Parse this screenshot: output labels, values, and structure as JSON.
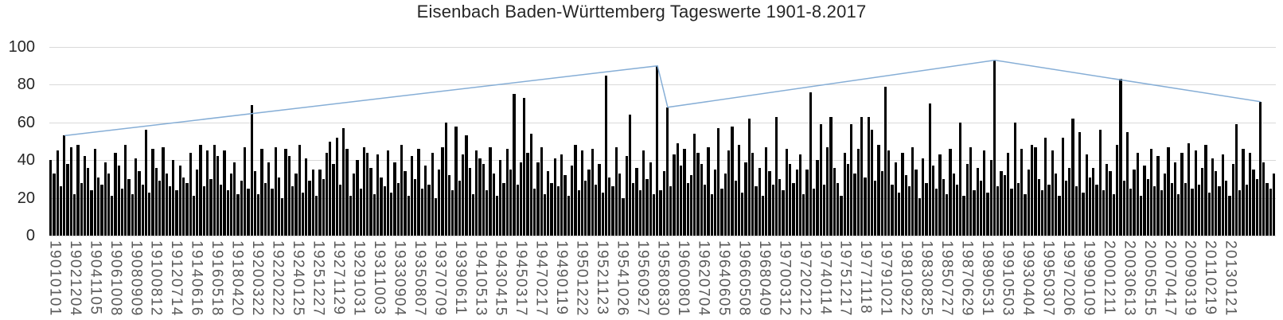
{
  "chart_data": {
    "type": "bar",
    "title": "Eisenbach Baden-Württemberg Tageswerte 1901-8.2017",
    "ylim": [
      0,
      100
    ],
    "yticks": [
      0,
      20,
      40,
      60,
      80,
      100
    ],
    "grid": "horizontal",
    "legend": "none",
    "x_tick_labels": [
      "19010101",
      "19021204",
      "19041105",
      "19061008",
      "19080909",
      "19100812",
      "19120714",
      "19140616",
      "19160518",
      "19180420",
      "19200322",
      "19220222",
      "19240125",
      "19251227",
      "19271129",
      "19291031",
      "19311003",
      "19330904",
      "19350807",
      "19370709",
      "19390611",
      "19410513",
      "19430415",
      "19450317",
      "19470217",
      "19490119",
      "19501222",
      "19521123",
      "19541026",
      "19560927",
      "19580830",
      "19600801",
      "19620704",
      "19640605",
      "19660508",
      "19680409",
      "19700312",
      "19720212",
      "19740114",
      "19751217",
      "19771118",
      "19791021",
      "19810922",
      "19830825",
      "19850727",
      "19870629",
      "19890531",
      "19910503",
      "19930404",
      "19950307",
      "19970206",
      "19990109",
      "20001211",
      "20030613",
      "20050515",
      "20070417",
      "20090319",
      "20110219",
      "20130121"
    ],
    "x_extra_intervals_after_last_label": 2.5,
    "series": [
      {
        "name": "daily-values-bars",
        "type": "bar",
        "color": "#000000",
        "values": [
          40,
          33,
          45,
          26,
          53,
          38,
          47,
          22,
          48,
          28,
          42,
          36,
          24,
          46,
          31,
          27,
          39,
          33,
          21,
          44,
          37,
          25,
          48,
          30,
          22,
          41,
          34,
          27,
          56,
          23,
          46,
          36,
          29,
          47,
          33,
          26,
          40,
          24,
          37,
          31,
          28,
          44,
          21,
          35,
          48,
          26,
          45,
          30,
          48,
          42,
          27,
          45,
          24,
          33,
          39,
          22,
          29,
          47,
          25,
          69,
          34,
          22,
          46,
          28,
          39,
          25,
          47,
          31,
          20,
          46,
          42,
          26,
          33,
          48,
          23,
          41,
          29,
          35,
          21,
          35,
          30,
          44,
          50,
          38,
          52,
          27,
          57,
          46,
          21,
          33,
          40,
          25,
          47,
          44,
          36,
          22,
          43,
          31,
          26,
          45,
          23,
          39,
          28,
          48,
          34,
          21,
          42,
          30,
          46,
          25,
          37,
          27,
          44,
          20,
          35,
          47,
          60,
          32,
          24,
          58,
          29,
          43,
          53,
          36,
          22,
          45,
          41,
          38,
          24,
          47,
          33,
          21,
          40,
          28,
          46,
          35,
          75,
          27,
          39,
          73,
          44,
          54,
          25,
          39,
          47,
          22,
          34,
          28,
          41,
          26,
          43,
          32,
          21,
          37,
          48,
          24,
          45,
          29,
          35,
          46,
          27,
          38,
          23,
          85,
          31,
          26,
          47,
          33,
          20,
          42,
          64,
          28,
          36,
          24,
          45,
          30,
          39,
          22,
          90,
          24,
          34,
          68,
          26,
          43,
          49,
          37,
          46,
          28,
          32,
          54,
          44,
          38,
          27,
          47,
          22,
          35,
          57,
          25,
          33,
          45,
          58,
          29,
          48,
          23,
          39,
          62,
          44,
          26,
          36,
          21,
          47,
          34,
          27,
          63,
          30,
          24,
          46,
          38,
          28,
          35,
          43,
          22,
          35,
          76,
          25,
          40,
          59,
          27,
          47,
          63,
          36,
          28,
          21,
          44,
          38,
          59,
          33,
          46,
          63,
          31,
          63,
          56,
          29,
          48,
          34,
          79,
          45,
          27,
          39,
          23,
          44,
          32,
          26,
          47,
          35,
          20,
          41,
          28,
          70,
          37,
          25,
          43,
          30,
          22,
          46,
          33,
          27,
          60,
          21,
          38,
          47,
          24,
          36,
          29,
          45,
          23,
          40,
          93,
          26,
          34,
          32,
          44,
          25,
          60,
          28,
          46,
          22,
          35,
          48,
          47,
          30,
          24,
          52,
          27,
          45,
          33,
          21,
          52,
          29,
          36,
          62,
          26,
          55,
          23,
          43,
          31,
          36,
          27,
          56,
          24,
          38,
          34,
          22,
          48,
          83,
          29,
          55,
          25,
          35,
          44,
          21,
          37,
          30,
          46,
          26,
          42,
          24,
          33,
          47,
          28,
          39,
          22,
          44,
          28,
          49,
          25,
          45,
          27,
          36,
          48,
          23,
          41,
          34,
          26,
          43,
          29,
          21,
          38,
          59,
          24,
          46,
          27,
          44,
          35,
          30,
          71,
          39,
          28,
          25,
          33
        ]
      },
      {
        "name": "peak-connector-line",
        "type": "line",
        "color": "#86aed6",
        "points": [
          [
            4,
            53
          ],
          [
            178,
            90
          ],
          [
            181,
            68
          ],
          [
            277,
            93
          ],
          [
            355,
            71
          ]
        ]
      }
    ],
    "colors": {
      "gridline": "#d9d9d9",
      "y_tick_label": "#262626",
      "x_tick_label": "#595959",
      "title": "#262626"
    }
  }
}
